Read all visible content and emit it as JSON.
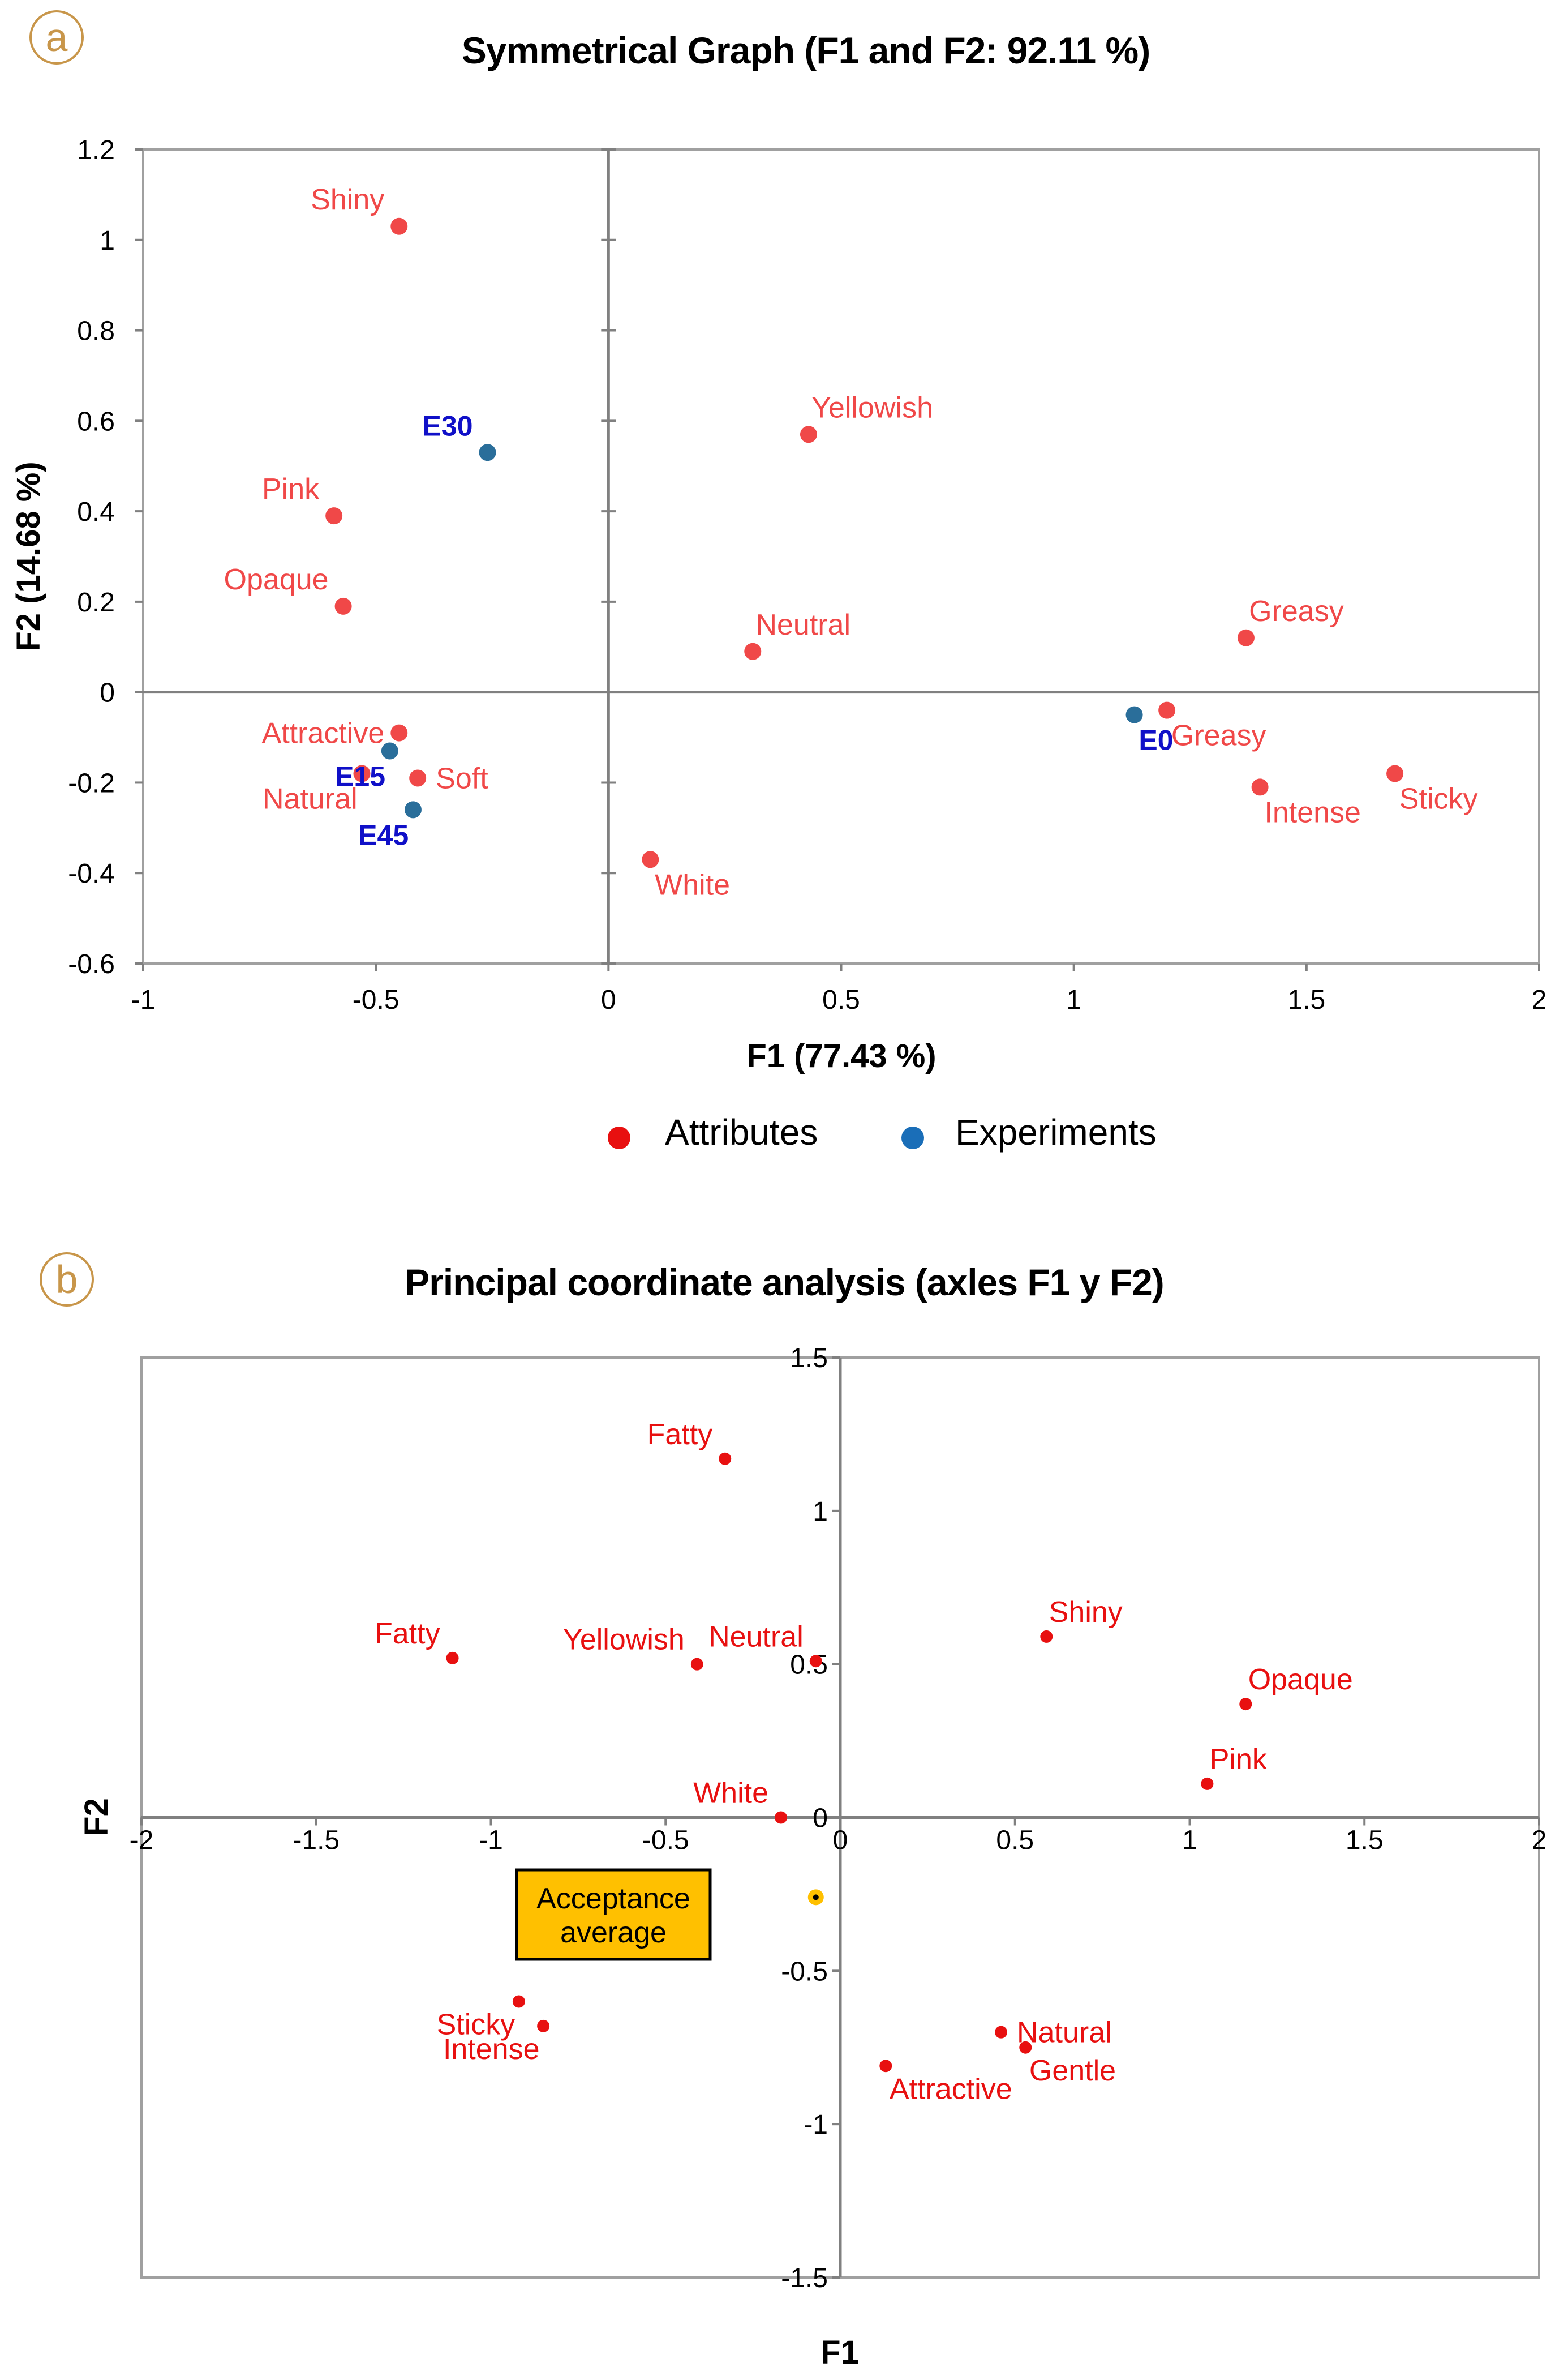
{
  "colors": {
    "attribute": "#f04848",
    "attribute_b": "#e81010",
    "experiment": "#2a6e9a",
    "experiment_label": "#1010c8",
    "panel_circle": "#c8964a",
    "box_fill": "#ffc000",
    "axis": "#808080",
    "frame": "#a0a0a0"
  },
  "chart_data": [
    {
      "panel": "a",
      "type": "scatter",
      "title": "Symmetrical Graph (F1 and F2: 92.11 %)",
      "xlabel": "F1 (77.43 %)",
      "ylabel": "F2 (14.68 %)",
      "xlim": [
        -1,
        2
      ],
      "ylim": [
        -0.6,
        1.2
      ],
      "xticks": [
        -1,
        -0.5,
        0,
        0.5,
        1,
        1.5,
        2
      ],
      "xtick_labels": [
        "-1",
        "-0.5",
        "0",
        "0.5",
        "1",
        "1.5",
        "2"
      ],
      "yticks": [
        -0.6,
        -0.4,
        -0.2,
        0,
        0.2,
        0.4,
        0.6,
        0.8,
        1,
        1.2
      ],
      "ytick_labels": [
        "-0.6",
        "-0.4",
        "-0.2",
        "0",
        "0.2",
        "0.4",
        "0.6",
        "0.8",
        "1",
        "1.2"
      ],
      "legend": [
        "Attributes",
        "Experiments"
      ],
      "legend_position": "bottom",
      "series": [
        {
          "name": "Attributes",
          "points": [
            {
              "label": "Shiny",
              "x": -0.45,
              "y": 1.03,
              "anchor": "above-left"
            },
            {
              "label": "Pink",
              "x": -0.59,
              "y": 0.39,
              "anchor": "above-left"
            },
            {
              "label": "Opaque",
              "x": -0.57,
              "y": 0.19,
              "anchor": "above-left"
            },
            {
              "label": "Yellowish",
              "x": 0.43,
              "y": 0.57,
              "anchor": "above-right"
            },
            {
              "label": "Neutral",
              "x": 0.31,
              "y": 0.09,
              "anchor": "above-right"
            },
            {
              "label": "Greasy",
              "x": 1.37,
              "y": 0.12,
              "anchor": "above-right"
            },
            {
              "label": "Greasy",
              "x": 1.2,
              "y": -0.04,
              "anchor": "below-right"
            },
            {
              "label": "Intense",
              "x": 1.4,
              "y": -0.21,
              "anchor": "below-right"
            },
            {
              "label": "Sticky",
              "x": 1.69,
              "y": -0.18,
              "anchor": "below-right"
            },
            {
              "label": "White",
              "x": 0.09,
              "y": -0.37,
              "anchor": "below-right"
            },
            {
              "label": "Attractive",
              "x": -0.45,
              "y": -0.09,
              "anchor": "left"
            },
            {
              "label": "Soft",
              "x": -0.41,
              "y": -0.19,
              "anchor": "right"
            },
            {
              "label": "Natural",
              "x": -0.53,
              "y": -0.18,
              "anchor": "below-left"
            }
          ]
        },
        {
          "name": "Experiments",
          "points": [
            {
              "label": "E30",
              "x": -0.26,
              "y": 0.53,
              "anchor": "above-left"
            },
            {
              "label": "E15",
              "x": -0.47,
              "y": -0.13,
              "anchor": "below-left"
            },
            {
              "label": "E45",
              "x": -0.42,
              "y": -0.26,
              "anchor": "below-left"
            },
            {
              "label": "E0",
              "x": 1.13,
              "y": -0.05,
              "anchor": "below-right"
            }
          ]
        }
      ]
    },
    {
      "panel": "b",
      "type": "scatter",
      "title": "Principal coordinate analysis (axles F1 y F2)",
      "xlabel": "F1",
      "ylabel": "F2",
      "xlim": [
        -2,
        2
      ],
      "ylim": [
        -1.5,
        1.5
      ],
      "xticks": [
        -2,
        -1.5,
        -1,
        -0.5,
        0,
        0.5,
        1,
        1.5,
        2
      ],
      "xtick_labels": [
        "-2",
        "-1.5",
        "-1",
        "-0.5",
        "0",
        "0.5",
        "1",
        "1.5",
        "2"
      ],
      "yticks": [
        -1.5,
        -1,
        -0.5,
        0,
        0.5,
        1,
        1.5
      ],
      "ytick_labels": [
        "-1.5",
        "-1",
        "-0.5",
        "0",
        "0.5",
        "1",
        "1.5"
      ],
      "annotation": {
        "lines": [
          "Acceptance",
          "average"
        ],
        "x": -0.07,
        "y": -0.26
      },
      "series": [
        {
          "name": "Attributes",
          "points": [
            {
              "label": "Fatty",
              "x": -0.33,
              "y": 1.17,
              "anchor": "above-left"
            },
            {
              "label": "Fatty",
              "x": -1.11,
              "y": 0.52,
              "anchor": "above-left"
            },
            {
              "label": "Yellowish",
              "x": -0.41,
              "y": 0.5,
              "anchor": "above-left"
            },
            {
              "label": "Neutral",
              "x": -0.07,
              "y": 0.51,
              "anchor": "above-left"
            },
            {
              "label": "Shiny",
              "x": 0.59,
              "y": 0.59,
              "anchor": "above-right"
            },
            {
              "label": "Opaque",
              "x": 1.16,
              "y": 0.37,
              "anchor": "above-right"
            },
            {
              "label": "Pink",
              "x": 1.05,
              "y": 0.11,
              "anchor": "above-right"
            },
            {
              "label": "White",
              "x": -0.17,
              "y": 0.0,
              "anchor": "above-left"
            },
            {
              "label": "Sticky",
              "x": -0.92,
              "y": -0.6,
              "anchor": "below-left"
            },
            {
              "label": "Intense",
              "x": -0.85,
              "y": -0.68,
              "anchor": "below-left"
            },
            {
              "label": "Natural",
              "x": 0.46,
              "y": -0.7,
              "anchor": "right"
            },
            {
              "label": "Gentle",
              "x": 0.53,
              "y": -0.75,
              "anchor": "below-right"
            },
            {
              "label": "Attractive",
              "x": 0.13,
              "y": -0.81,
              "anchor": "below-right"
            }
          ]
        }
      ]
    }
  ]
}
